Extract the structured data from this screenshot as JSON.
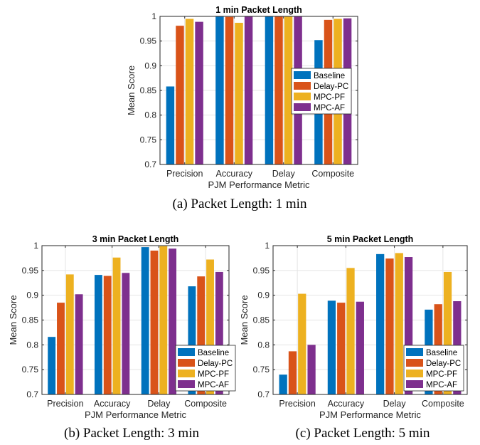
{
  "colors": {
    "Baseline": "#0072BD",
    "Delay-PC": "#D95319",
    "MPC-PF": "#EDB120",
    "MPC-AF": "#7E2F8E"
  },
  "chart_data": [
    {
      "type": "bar",
      "title": "1 min Packet Length",
      "caption": "(a) Packet Length: 1 min",
      "xlabel": "PJM Performance Metric",
      "ylabel": "Mean Score",
      "ylim": [
        0.7,
        1.0
      ],
      "yticks": [
        "0.7",
        "0.75",
        "0.8",
        "0.85",
        "0.9",
        "0.95",
        "1"
      ],
      "categories": [
        "Precision",
        "Accuracy",
        "Delay",
        "Composite"
      ],
      "legend_position": "center-right",
      "grid": true,
      "series": [
        {
          "name": "Baseline",
          "values": [
            0.858,
            1.0,
            1.0,
            0.952
          ]
        },
        {
          "name": "Delay-PC",
          "values": [
            0.981,
            0.999,
            1.0,
            0.993
          ]
        },
        {
          "name": "MPC-PF",
          "values": [
            0.995,
            0.987,
            1.0,
            0.995
          ]
        },
        {
          "name": "MPC-AF",
          "values": [
            0.989,
            1.0,
            1.0,
            0.996
          ]
        }
      ]
    },
    {
      "type": "bar",
      "title": "3 min Packet Length",
      "caption": "(b) Packet Length: 3 min",
      "xlabel": "PJM Performance Metric",
      "ylabel": "Mean Score",
      "ylim": [
        0.7,
        1.0
      ],
      "yticks": [
        "0.7",
        "0.75",
        "0.8",
        "0.85",
        "0.9",
        "0.95",
        "1"
      ],
      "categories": [
        "Precision",
        "Accuracy",
        "Delay",
        "Composite"
      ],
      "legend_position": "bottom-right",
      "grid": true,
      "series": [
        {
          "name": "Baseline",
          "values": [
            0.816,
            0.941,
            0.997,
            0.918
          ]
        },
        {
          "name": "Delay-PC",
          "values": [
            0.885,
            0.939,
            0.99,
            0.938
          ]
        },
        {
          "name": "MPC-PF",
          "values": [
            0.942,
            0.976,
            0.999,
            0.972
          ]
        },
        {
          "name": "MPC-AF",
          "values": [
            0.902,
            0.945,
            0.994,
            0.947
          ]
        }
      ]
    },
    {
      "type": "bar",
      "title": "5 min Packet Length",
      "caption": "(c) Packet Length: 5 min",
      "xlabel": "PJM Performance Metric",
      "ylabel": "Mean Score",
      "ylim": [
        0.7,
        1.0
      ],
      "yticks": [
        "0.7",
        "0.75",
        "0.8",
        "0.85",
        "0.9",
        "0.95",
        "1"
      ],
      "categories": [
        "Precision",
        "Accuracy",
        "Delay",
        "Composite"
      ],
      "legend_position": "bottom-right",
      "grid": true,
      "series": [
        {
          "name": "Baseline",
          "values": [
            0.74,
            0.889,
            0.983,
            0.871
          ]
        },
        {
          "name": "Delay-PC",
          "values": [
            0.787,
            0.885,
            0.974,
            0.882
          ]
        },
        {
          "name": "MPC-PF",
          "values": [
            0.903,
            0.955,
            0.985,
            0.947
          ]
        },
        {
          "name": "MPC-AF",
          "values": [
            0.8,
            0.887,
            0.977,
            0.888
          ]
        }
      ]
    }
  ]
}
